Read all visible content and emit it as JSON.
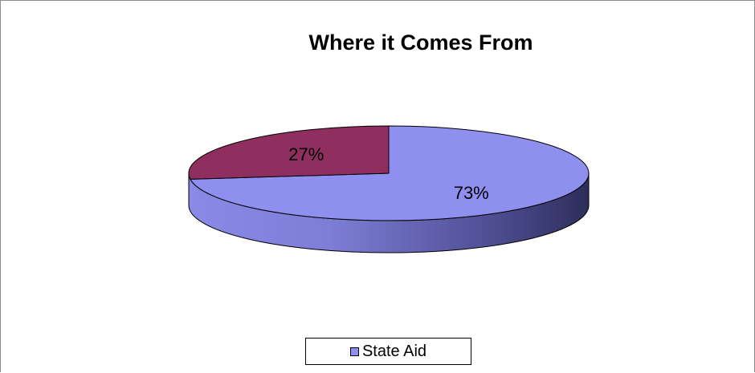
{
  "chart_data": {
    "type": "pie",
    "title": "Where it Comes From",
    "slices": [
      {
        "label": "State Aid",
        "value": 73,
        "display": "73%",
        "color": "#8f8fef"
      },
      {
        "label": "",
        "value": 27,
        "display": "27%",
        "color": "#8f2f5f"
      }
    ],
    "legend_entries": [
      "State Aid"
    ],
    "legend_placement": "bottom",
    "three_d": true
  }
}
